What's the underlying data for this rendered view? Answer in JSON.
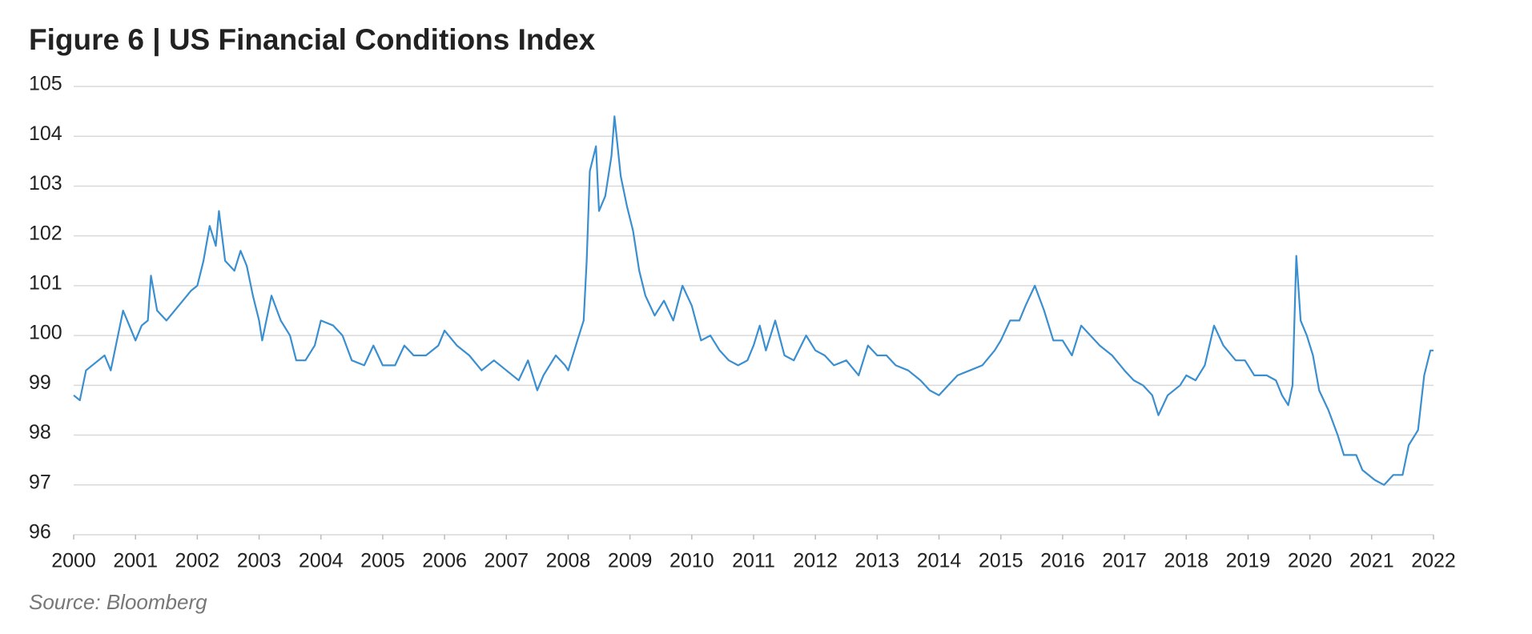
{
  "chart_data": {
    "type": "line",
    "title": "Figure 6  |  US Financial Conditions Index",
    "source": "Source: Bloomberg",
    "xlim": [
      2000,
      2022
    ],
    "xticks": [
      2000,
      2001,
      2002,
      2003,
      2004,
      2005,
      2006,
      2007,
      2008,
      2009,
      2010,
      2011,
      2012,
      2013,
      2014,
      2015,
      2016,
      2017,
      2018,
      2019,
      2020,
      2021,
      2022
    ],
    "ylim": [
      96,
      105
    ],
    "yticks": [
      96,
      97,
      98,
      99,
      100,
      101,
      102,
      103,
      104,
      105
    ],
    "grid": true,
    "series": [
      {
        "color": "#3a8fd0",
        "x": [
          2000.0,
          2000.1,
          2000.2,
          2000.4,
          2000.5,
          2000.6,
          2000.8,
          2000.9,
          2001.0,
          2001.1,
          2001.2,
          2001.25,
          2001.35,
          2001.5,
          2001.7,
          2001.9,
          2002.0,
          2002.1,
          2002.2,
          2002.3,
          2002.35,
          2002.45,
          2002.6,
          2002.7,
          2002.8,
          2002.9,
          2003.0,
          2003.05,
          2003.2,
          2003.35,
          2003.5,
          2003.6,
          2003.75,
          2003.9,
          2004.0,
          2004.2,
          2004.35,
          2004.5,
          2004.7,
          2004.85,
          2005.0,
          2005.2,
          2005.35,
          2005.5,
          2005.7,
          2005.9,
          2006.0,
          2006.2,
          2006.4,
          2006.6,
          2006.8,
          2007.0,
          2007.2,
          2007.35,
          2007.5,
          2007.6,
          2007.8,
          2007.95,
          2008.0,
          2008.15,
          2008.25,
          2008.3,
          2008.35,
          2008.45,
          2008.5,
          2008.6,
          2008.7,
          2008.75,
          2008.85,
          2008.95,
          2009.05,
          2009.15,
          2009.25,
          2009.4,
          2009.55,
          2009.7,
          2009.85,
          2010.0,
          2010.15,
          2010.3,
          2010.45,
          2010.6,
          2010.75,
          2010.9,
          2011.0,
          2011.1,
          2011.2,
          2011.35,
          2011.5,
          2011.65,
          2011.85,
          2012.0,
          2012.15,
          2012.3,
          2012.5,
          2012.7,
          2012.85,
          2013.0,
          2013.15,
          2013.3,
          2013.5,
          2013.7,
          2013.85,
          2014.0,
          2014.15,
          2014.3,
          2014.5,
          2014.7,
          2014.9,
          2015.0,
          2015.15,
          2015.3,
          2015.4,
          2015.55,
          2015.7,
          2015.85,
          2016.0,
          2016.15,
          2016.3,
          2016.45,
          2016.6,
          2016.8,
          2017.0,
          2017.15,
          2017.3,
          2017.45,
          2017.55,
          2017.7,
          2017.9,
          2018.0,
          2018.15,
          2018.3,
          2018.45,
          2018.6,
          2018.8,
          2018.95,
          2019.1,
          2019.3,
          2019.45,
          2019.55,
          2019.65,
          2019.72,
          2019.78,
          2019.85,
          2019.95,
          2020.05,
          2020.15,
          2020.3,
          2020.45,
          2020.55,
          2020.75,
          2020.85,
          2021.05,
          2021.2,
          2021.35,
          2021.5,
          2021.6,
          2021.75,
          2021.85,
          2021.95,
          2022.0
        ],
        "values": [
          98.8,
          98.7,
          99.3,
          99.5,
          99.6,
          99.3,
          100.5,
          100.2,
          99.9,
          100.2,
          100.3,
          101.2,
          100.5,
          100.3,
          100.6,
          100.9,
          101.0,
          101.5,
          102.2,
          101.8,
          102.5,
          101.5,
          101.3,
          101.7,
          101.4,
          100.8,
          100.3,
          99.9,
          100.8,
          100.3,
          100.0,
          99.5,
          99.5,
          99.8,
          100.3,
          100.2,
          100.0,
          99.5,
          99.4,
          99.8,
          99.4,
          99.4,
          99.8,
          99.6,
          99.6,
          99.8,
          100.1,
          99.8,
          99.6,
          99.3,
          99.5,
          99.3,
          99.1,
          99.5,
          98.9,
          99.2,
          99.6,
          99.4,
          99.3,
          99.9,
          100.3,
          101.5,
          103.3,
          103.8,
          102.5,
          102.8,
          103.6,
          104.4,
          103.2,
          102.6,
          102.1,
          101.3,
          100.8,
          100.4,
          100.7,
          100.3,
          101.0,
          100.6,
          99.9,
          100.0,
          99.7,
          99.5,
          99.4,
          99.5,
          99.8,
          100.2,
          99.7,
          100.3,
          99.6,
          99.5,
          100.0,
          99.7,
          99.6,
          99.4,
          99.5,
          99.2,
          99.8,
          99.6,
          99.6,
          99.4,
          99.3,
          99.1,
          98.9,
          98.8,
          99.0,
          99.2,
          99.3,
          99.4,
          99.7,
          99.9,
          100.3,
          100.3,
          100.6,
          101.0,
          100.5,
          99.9,
          99.9,
          99.6,
          100.2,
          100.0,
          99.8,
          99.6,
          99.3,
          99.1,
          99.0,
          98.8,
          98.4,
          98.8,
          99.0,
          99.2,
          99.1,
          99.4,
          100.2,
          99.8,
          99.5,
          99.5,
          99.2,
          99.2,
          99.1,
          98.8,
          98.6,
          99.0,
          101.6,
          100.3,
          100.0,
          99.6,
          98.9,
          98.5,
          98.0,
          97.6,
          97.6,
          97.3,
          97.1,
          97.0,
          97.2,
          97.2,
          97.8,
          98.1,
          99.2,
          99.7,
          99.7
        ]
      }
    ]
  }
}
